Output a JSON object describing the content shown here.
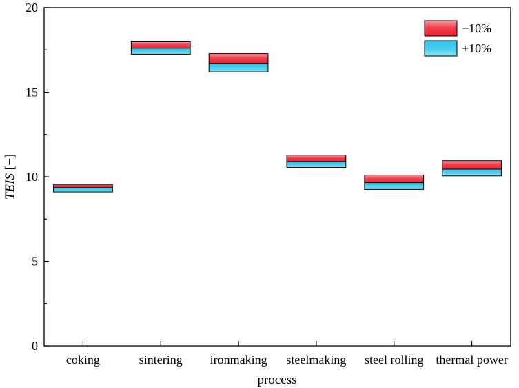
{
  "chart_data": {
    "type": "bar",
    "subtype": "floating-range",
    "title": "",
    "xlabel": "process",
    "ylabel_italic": "TEIS",
    "ylabel_unit": " [−]",
    "ylim": [
      0,
      20
    ],
    "yticks": [
      0,
      5,
      10,
      15,
      20
    ],
    "grid": false,
    "legend_position": "top-right",
    "categories": [
      "coking",
      "sintering",
      "ironmaking",
      "steelmaking",
      "steel rolling",
      "thermal power"
    ],
    "baseline": [
      9.35,
      17.6,
      16.7,
      10.9,
      9.65,
      10.45
    ],
    "series": [
      {
        "name": "−10%",
        "color": "#f0414c",
        "values": [
          9.52,
          17.98,
          17.28,
          11.28,
          10.1,
          10.95
        ]
      },
      {
        "name": "+10%",
        "color": "#38c6eb",
        "values": [
          9.1,
          17.25,
          16.2,
          10.55,
          9.25,
          10.05
        ]
      }
    ]
  }
}
